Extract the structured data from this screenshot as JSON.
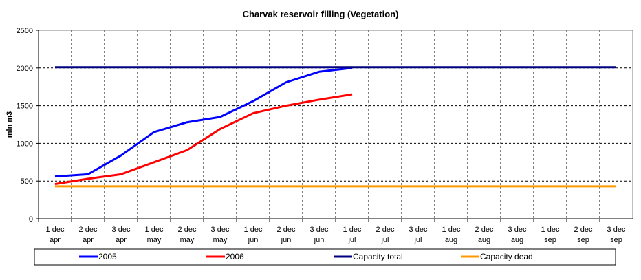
{
  "chart_data": {
    "type": "line",
    "title": "Charvak reservoir filling  (Vegetation)",
    "ylabel": "mln m3",
    "xlabel": "",
    "ylim": [
      0,
      2500
    ],
    "yticks": [
      0,
      500,
      1000,
      1500,
      2000,
      2500
    ],
    "grid": true,
    "legend_placement": "bottom",
    "categories": [
      [
        "1 dec",
        "apr"
      ],
      [
        "2 dec",
        "apr"
      ],
      [
        "3 dec",
        "apr"
      ],
      [
        "1 dec",
        "may"
      ],
      [
        "2 dec",
        "may"
      ],
      [
        "3 dec",
        "may"
      ],
      [
        "1 dec",
        "jun"
      ],
      [
        "2 dec",
        "jun"
      ],
      [
        "3 dec",
        "jun"
      ],
      [
        "1 dec",
        "jul"
      ],
      [
        "2 dec",
        "jul"
      ],
      [
        "3 dec",
        "jul"
      ],
      [
        "1 dec",
        "aug"
      ],
      [
        "2 dec",
        "aug"
      ],
      [
        "3 dec",
        "aug"
      ],
      [
        "1 dec",
        "sep"
      ],
      [
        "2 dec",
        "sep"
      ],
      [
        "3 dec",
        "sep"
      ]
    ],
    "series": [
      {
        "name": "2005",
        "color": "#0000ff",
        "values": [
          560,
          590,
          840,
          1150,
          1280,
          1350,
          1560,
          1810,
          1950,
          2000,
          null,
          null,
          null,
          null,
          null,
          null,
          null,
          null
        ]
      },
      {
        "name": "2006",
        "color": "#ff0000",
        "values": [
          460,
          530,
          590,
          750,
          910,
          1190,
          1400,
          1500,
          1580,
          1650,
          null,
          null,
          null,
          null,
          null,
          null,
          null,
          null
        ]
      },
      {
        "name": "Capacity total",
        "color": "#000080",
        "values": [
          2010,
          2010,
          2010,
          2010,
          2010,
          2010,
          2010,
          2010,
          2010,
          2010,
          2010,
          2010,
          2010,
          2010,
          2010,
          2010,
          2010,
          2010
        ]
      },
      {
        "name": "Capacity dead",
        "color": "#ff9900",
        "values": [
          430,
          430,
          430,
          430,
          430,
          430,
          430,
          430,
          430,
          430,
          430,
          430,
          430,
          430,
          430,
          430,
          430,
          430
        ]
      }
    ]
  }
}
